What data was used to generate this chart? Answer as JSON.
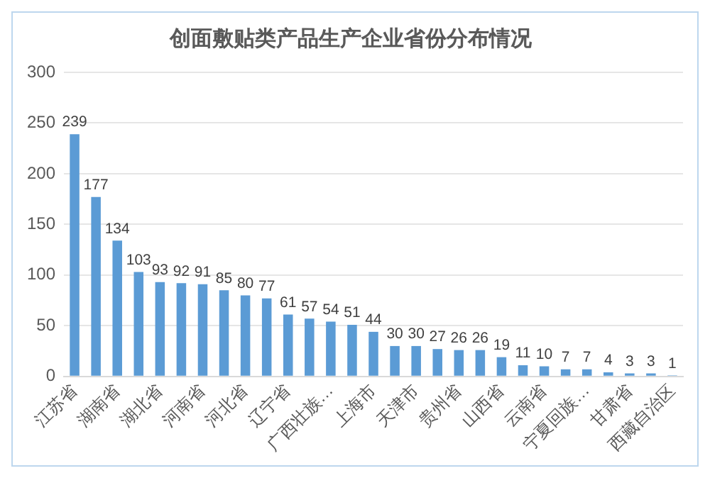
{
  "chart_data": {
    "type": "bar",
    "title": "创面敷贴类产品生产企业省份分布情况",
    "categories": [
      "江苏省",
      null,
      "湖南省",
      null,
      "湖北省",
      null,
      "河南省",
      null,
      "河北省",
      null,
      "辽宁省",
      null,
      "广西壮族…",
      null,
      "上海市",
      null,
      "天津市",
      null,
      "贵州省",
      null,
      "山西省",
      null,
      "云南省",
      null,
      "宁夏回族…",
      null,
      "甘肃省",
      null,
      "西藏自治区"
    ],
    "values": [
      239,
      177,
      134,
      103,
      93,
      92,
      91,
      85,
      80,
      77,
      61,
      57,
      54,
      51,
      44,
      30,
      30,
      27,
      26,
      26,
      19,
      11,
      10,
      7,
      7,
      4,
      3,
      3,
      1
    ],
    "color": "#5b9bd5",
    "ylim": [
      0,
      300
    ],
    "yticks": [
      0,
      50,
      100,
      150,
      200,
      250,
      300
    ],
    "grid": "y",
    "data_labels": true
  }
}
